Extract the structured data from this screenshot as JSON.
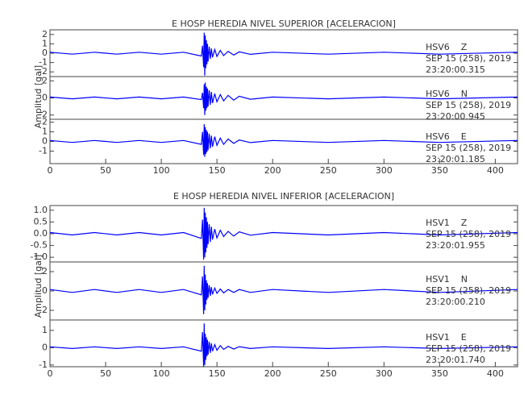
{
  "chart_data": [
    {
      "type": "line",
      "title": "E HOSP HEREDIA NIVEL SUPERIOR [ACELERACION]",
      "ylabel": "Amplitud [gal]",
      "xlim": [
        0,
        420
      ],
      "xticks": [
        0,
        50,
        100,
        150,
        200,
        250,
        300,
        350,
        400
      ],
      "x": [
        0,
        20,
        40,
        60,
        80,
        100,
        120,
        136,
        137,
        138,
        138.5,
        139,
        139.5,
        140,
        140.5,
        141,
        141.5,
        142,
        143,
        144,
        145,
        146,
        148,
        150,
        153,
        156,
        160,
        165,
        170,
        180,
        200,
        250,
        300,
        350,
        420
      ],
      "traces": [
        {
          "station": "HSV6",
          "component": "Z",
          "date": "SEP 15 (258), 2019",
          "time": "23:20:00.315",
          "color": "#0000ff",
          "ylim": [
            -2.5,
            2.5
          ],
          "yticks": [
            -2,
            -1,
            0,
            1,
            2
          ],
          "values": [
            0.1,
            -0.1,
            0.1,
            -0.1,
            0.1,
            -0.1,
            0.1,
            -0.3,
            0.8,
            -1.5,
            2.2,
            -2.4,
            1.9,
            -1.6,
            1.4,
            -1.2,
            1,
            -0.9,
            0.7,
            -0.6,
            0.5,
            -0.45,
            0.4,
            -0.35,
            0.3,
            -0.25,
            0.2,
            -0.2,
            0.15,
            -0.12,
            0.1,
            -0.1,
            0.1,
            -0.1,
            0.1
          ]
        },
        {
          "station": "HSV6",
          "component": "N",
          "date": "SEP 15 (258), 2019",
          "time": "23:20:00.945",
          "color": "#0000ff",
          "ylim": [
            -2.5,
            2.5
          ],
          "yticks": [
            -2,
            0,
            2
          ],
          "values": [
            0.1,
            -0.1,
            0.1,
            -0.1,
            0.1,
            -0.1,
            0.1,
            -0.2,
            0.6,
            -1.2,
            1.6,
            -2,
            1.8,
            -1.5,
            1.3,
            -1.2,
            1.1,
            -1,
            0.9,
            -0.8,
            0.7,
            -0.6,
            0.5,
            -0.45,
            0.4,
            -0.35,
            0.3,
            -0.25,
            0.2,
            -0.15,
            0.1,
            -0.1,
            0.1,
            -0.1,
            0.1
          ]
        },
        {
          "station": "HSV6",
          "component": "E",
          "date": "SEP 15 (258), 2019",
          "time": "23:20:01.185",
          "color": "#0000ff",
          "ylim": [
            -2.3,
            2.3
          ],
          "yticks": [
            -1,
            0,
            1,
            2
          ],
          "values": [
            0.1,
            -0.1,
            0.1,
            -0.1,
            0.1,
            -0.1,
            0.1,
            -0.3,
            1,
            -1.4,
            1.8,
            -1.6,
            1.5,
            -1.3,
            1.2,
            -1.1,
            1,
            -0.9,
            0.8,
            -0.7,
            0.6,
            -0.55,
            0.5,
            -0.4,
            0.35,
            -0.3,
            0.25,
            -0.2,
            0.15,
            -0.12,
            0.1,
            -0.1,
            0.1,
            -0.1,
            0.1
          ]
        }
      ]
    },
    {
      "type": "line",
      "title": "E HOSP HEREDIA NIVEL INFERIOR [ACELERACION]",
      "ylabel": "Amplitud [gal]",
      "xlim": [
        0,
        420
      ],
      "xticks": [
        0,
        50,
        100,
        150,
        200,
        250,
        300,
        350,
        400
      ],
      "x": [
        0,
        20,
        40,
        60,
        80,
        100,
        120,
        136,
        137,
        138,
        138.5,
        139,
        139.5,
        140,
        140.5,
        141,
        141.5,
        142,
        143,
        144,
        145,
        146,
        148,
        150,
        153,
        156,
        160,
        165,
        170,
        180,
        200,
        250,
        300,
        350,
        420
      ],
      "traces": [
        {
          "station": "HSV1",
          "component": "Z",
          "date": "SEP 15 (258), 2019",
          "time": "23:20:01.955",
          "color": "#0000ff",
          "ylim": [
            -1.2,
            1.2
          ],
          "yticks": [
            {
              "value": -1,
              "label": "-1.0"
            },
            -0.5,
            {
              "value": 0,
              "label": "0.0"
            },
            0.5,
            {
              "value": 1,
              "label": "1.0"
            }
          ],
          "values": [
            0.05,
            -0.05,
            0.05,
            -0.05,
            0.05,
            -0.05,
            0.05,
            -0.2,
            0.6,
            -1.1,
            1.1,
            -1,
            0.9,
            -0.8,
            0.7,
            -0.6,
            0.5,
            -0.45,
            0.4,
            -0.35,
            0.3,
            -0.25,
            0.2,
            -0.18,
            0.15,
            -0.12,
            0.1,
            -0.1,
            0.08,
            -0.06,
            0.05,
            -0.05,
            0.05,
            -0.05,
            0.05
          ]
        },
        {
          "station": "HSV1",
          "component": "N",
          "date": "SEP 15 (258), 2019",
          "time": "23:20:00.210",
          "color": "#0000ff",
          "ylim": [
            -3,
            3
          ],
          "yticks": [
            -2,
            0,
            2
          ],
          "values": [
            0.15,
            -0.15,
            0.15,
            -0.15,
            0.15,
            -0.15,
            0.15,
            -0.4,
            1.5,
            -2.4,
            2.6,
            -2,
            1.7,
            -1.4,
            1.1,
            -0.9,
            0.8,
            -0.7,
            0.6,
            -0.5,
            0.4,
            -0.35,
            0.3,
            -0.25,
            0.2,
            -0.2,
            0.15,
            -0.15,
            0.15,
            -0.15,
            0.15,
            -0.15,
            0.15,
            -0.15,
            0.15
          ]
        },
        {
          "station": "HSV1",
          "component": "E",
          "date": "SEP 15 (258), 2019",
          "time": "23:20:01.740",
          "color": "#0000ff",
          "ylim": [
            -1.1,
            1.6
          ],
          "yticks": [
            -1,
            0,
            1
          ],
          "values": [
            0.05,
            -0.05,
            0.05,
            -0.05,
            0.05,
            -0.05,
            0.05,
            -0.2,
            0.9,
            -1.1,
            1.4,
            -1,
            0.8,
            -0.7,
            0.6,
            -0.5,
            0.45,
            -0.4,
            0.35,
            -0.3,
            0.25,
            -0.2,
            0.18,
            -0.15,
            0.12,
            -0.1,
            0.08,
            -0.08,
            0.06,
            -0.05,
            0.05,
            -0.05,
            0.05,
            -0.05,
            0.05
          ]
        }
      ]
    }
  ]
}
